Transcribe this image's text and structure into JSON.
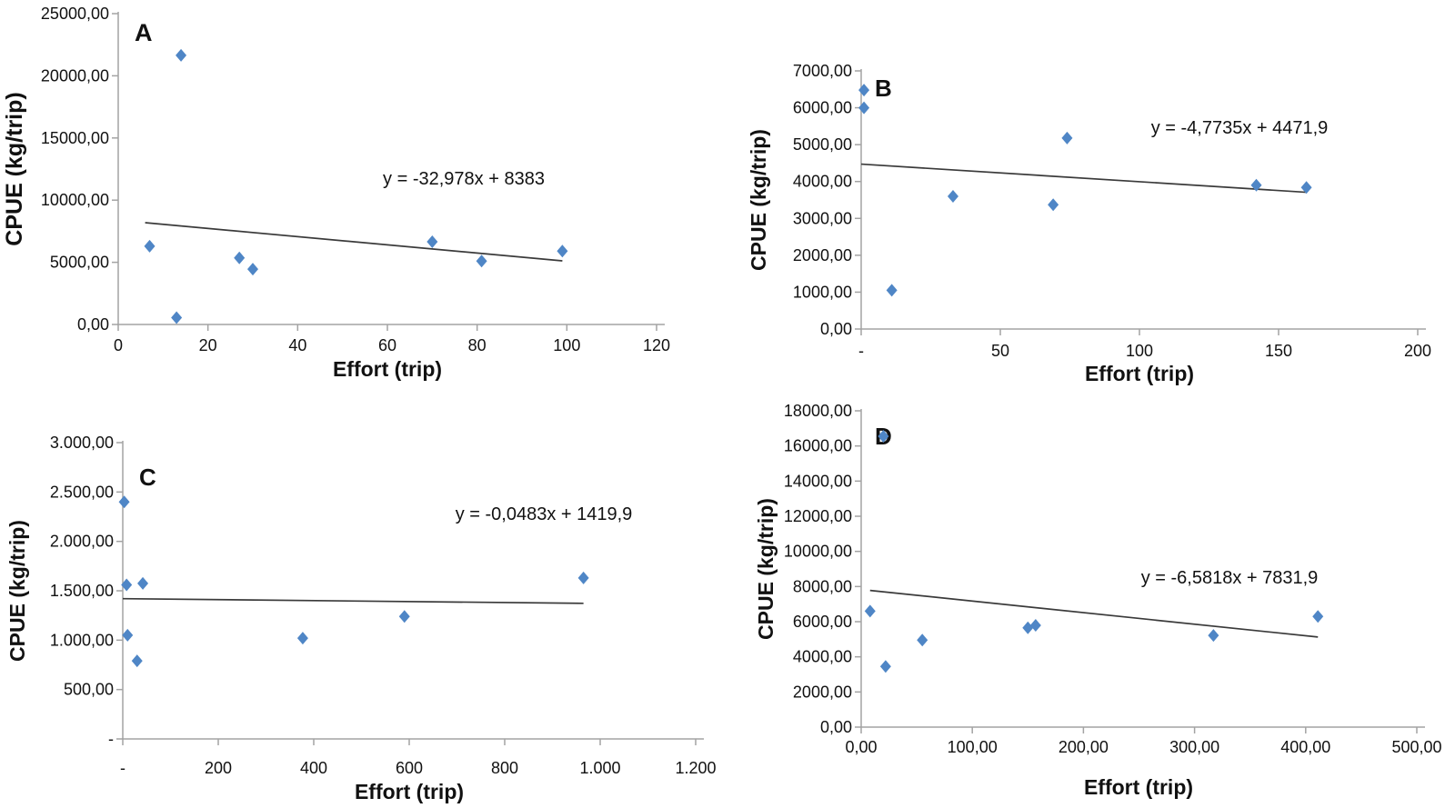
{
  "styles": {
    "background": "#ffffff",
    "marker_color": "#4f86c6",
    "trend_color": "#3a3a3a",
    "axis_color": "#a3a3a3",
    "text_color": "#111111"
  },
  "chart_data": [
    {
      "type": "scatter",
      "panel_label": "A",
      "xlabel": "Effort (trip)",
      "ylabel": "CPUE (kg/trip)",
      "equation": "y = -32,978x + 8383",
      "xlim": [
        0,
        120
      ],
      "ylim": [
        0,
        25000
      ],
      "grid": false,
      "legend": null,
      "xticks": {
        "values": [
          0,
          20,
          40,
          60,
          80,
          100,
          120
        ],
        "labels": [
          "0",
          "20",
          "40",
          "60",
          "80",
          "100",
          "120"
        ]
      },
      "yticks": {
        "values": [
          0,
          5000,
          10000,
          15000,
          20000,
          25000
        ],
        "labels": [
          "0,00",
          "5000,00",
          "10000,00",
          "15000,00",
          "20000,00",
          "25000,00"
        ]
      },
      "points": [
        [
          7,
          6300
        ],
        [
          14,
          21650
        ],
        [
          13,
          550
        ],
        [
          27,
          5350
        ],
        [
          30,
          4450
        ],
        [
          70,
          6650
        ],
        [
          81,
          5100
        ],
        [
          99,
          5900
        ]
      ],
      "trendline": {
        "x1": 6,
        "y1": 8185,
        "x2": 99,
        "y2": 5118
      }
    },
    {
      "type": "scatter",
      "panel_label": "B",
      "xlabel": "Effort (trip)",
      "ylabel": "CPUE (kg/trip)",
      "equation": "y = -4,7735x + 4471,9",
      "xlim": [
        0,
        200
      ],
      "ylim": [
        0,
        7000
      ],
      "grid": false,
      "legend": null,
      "xticks": {
        "values": [
          0,
          50,
          100,
          150,
          200
        ],
        "labels": [
          "-",
          "50",
          "100",
          "150",
          "200"
        ]
      },
      "yticks": {
        "values": [
          0,
          1000,
          2000,
          3000,
          4000,
          5000,
          6000,
          7000
        ],
        "labels": [
          "0,00",
          "1000,00",
          "2000,00",
          "3000,00",
          "4000,00",
          "5000,00",
          "6000,00",
          "7000,00"
        ]
      },
      "points": [
        [
          1,
          6480
        ],
        [
          1,
          6000
        ],
        [
          11,
          1050
        ],
        [
          33,
          3600
        ],
        [
          69,
          3370
        ],
        [
          74,
          5180
        ],
        [
          142,
          3900
        ],
        [
          160,
          3840
        ]
      ],
      "trendline": {
        "x1": 0,
        "y1": 4472,
        "x2": 160,
        "y2": 3708
      }
    },
    {
      "type": "scatter",
      "panel_label": "C",
      "xlabel": "Effort (trip)",
      "ylabel": "CPUE (kg/trip)",
      "equation": "y = -0,0483x + 1419,9",
      "xlim": [
        0,
        1200
      ],
      "ylim": [
        0,
        3000
      ],
      "grid": false,
      "legend": null,
      "xticks": {
        "values": [
          0,
          200,
          400,
          600,
          800,
          1000,
          1200
        ],
        "labels": [
          "-",
          "200",
          "400",
          "600",
          "800",
          "1.000",
          "1.200"
        ]
      },
      "yticks": {
        "values": [
          0,
          500,
          1000,
          1500,
          2000,
          2500,
          3000
        ],
        "labels": [
          "-",
          "500,00",
          "1.000,00",
          "1.500,00",
          "2.000,00",
          "2.500,00",
          "3.000,00"
        ]
      },
      "points": [
        [
          3,
          2400
        ],
        [
          8,
          1560
        ],
        [
          42,
          1575
        ],
        [
          10,
          1050
        ],
        [
          30,
          790
        ],
        [
          377,
          1020
        ],
        [
          590,
          1240
        ],
        [
          965,
          1630
        ]
      ],
      "trendline": {
        "x1": 0,
        "y1": 1420,
        "x2": 965,
        "y2": 1373
      }
    },
    {
      "type": "scatter",
      "panel_label": "D",
      "xlabel": "Effort (trip)",
      "ylabel": "CPUE (kg/trip)",
      "equation": "y = -6,5818x + 7831,9",
      "xlim": [
        0,
        500
      ],
      "ylim": [
        0,
        18000
      ],
      "grid": false,
      "legend": null,
      "xticks": {
        "values": [
          0,
          100,
          200,
          300,
          400,
          500
        ],
        "labels": [
          "0,00",
          "100,00",
          "200,00",
          "300,00",
          "400,00",
          "500,00"
        ]
      },
      "yticks": {
        "values": [
          0,
          2000,
          4000,
          6000,
          8000,
          10000,
          12000,
          14000,
          16000,
          18000
        ],
        "labels": [
          "0,00",
          "2000,00",
          "4000,00",
          "6000,00",
          "8000,00",
          "10000,00",
          "12000,00",
          "14000,00",
          "16000,00",
          "18000,00"
        ]
      },
      "points": [
        [
          8,
          6600
        ],
        [
          20,
          16550
        ],
        [
          22,
          3450
        ],
        [
          55,
          4950
        ],
        [
          150,
          5650
        ],
        [
          157,
          5790
        ],
        [
          317,
          5220
        ],
        [
          411,
          6300
        ]
      ],
      "trendline": {
        "x1": 8,
        "y1": 7779,
        "x2": 411,
        "y2": 5127
      }
    }
  ]
}
